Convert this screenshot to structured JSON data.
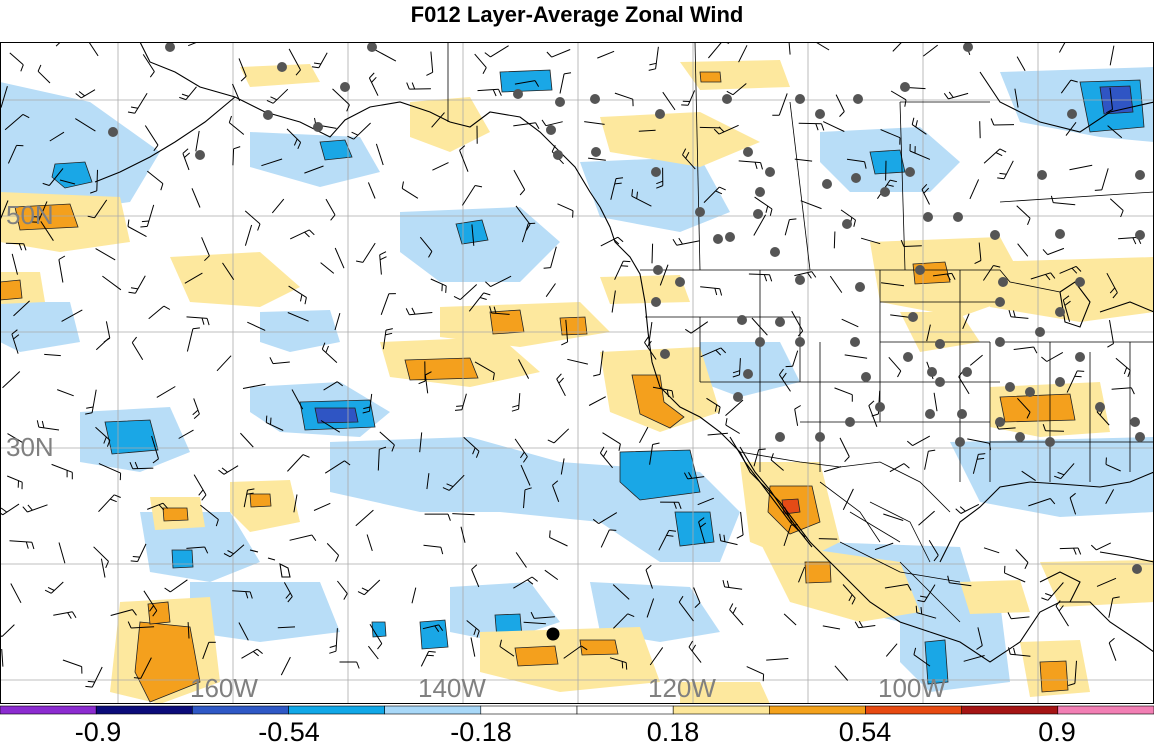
{
  "title": "F012 Layer-Average Zonal Wind",
  "map": {
    "lat_labels": [
      "50N",
      "30N"
    ],
    "lon_labels": [
      "160W",
      "140W",
      "120W",
      "100W"
    ],
    "label_color": "#808080"
  },
  "colorbar": {
    "colors": [
      "#8c2cd0",
      "#0b0b7a",
      "#2f58c6",
      "#11a8e8",
      "#a8d8f8",
      "#ffffff",
      "#ffffff",
      "#fde79a",
      "#f4a21c",
      "#e84a12",
      "#a51414",
      "#f27fb4"
    ],
    "tick_labels": [
      "-0.9",
      "-0.54",
      "-0.18",
      "0.18",
      "0.54",
      "0.9"
    ]
  },
  "palette": {
    "neg_light": "#b8ddf7",
    "neg_mid": "#1aa7e6",
    "neg_dark": "#2f55c4",
    "pos_light": "#fde89e",
    "pos_mid": "#f4a01d",
    "pos_dark": "#e54b16",
    "station": "#555555"
  }
}
